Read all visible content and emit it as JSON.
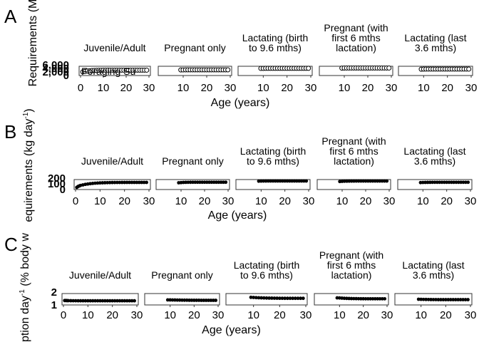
{
  "chart_data": [
    {
      "type": "scatter",
      "panel_label": "A",
      "ylabel": "Requirements (M",
      "xlabel": "Age (years)",
      "x_ticks": [
        "0",
        "10",
        "20",
        "30"
      ],
      "y_ticks": [
        "0",
        "2,000",
        "4,000",
        "6,000"
      ],
      "xlim": [
        0,
        30
      ],
      "ylim": [
        0,
        6000
      ],
      "legend_text": "Foraging Su",
      "facets": [
        {
          "title": "Juvenile/Adult",
          "x": [
            1,
            2,
            3,
            4,
            5,
            6,
            7,
            8,
            9,
            10,
            11,
            12,
            13,
            14,
            15,
            16,
            17,
            18,
            19,
            20,
            21,
            22,
            23,
            24,
            25,
            26,
            27,
            28,
            29
          ],
          "y": [
            2100,
            2500,
            2900,
            3100,
            3300,
            3400,
            3500,
            3550,
            3600,
            3650,
            3700,
            3700,
            3700,
            3700,
            3700,
            3700,
            3700,
            3700,
            3700,
            3700,
            3700,
            3700,
            3700,
            3700,
            3700,
            3700,
            3700,
            3700,
            3700
          ]
        },
        {
          "title": "Pregnant only",
          "x": [
            9,
            10,
            11,
            12,
            13,
            14,
            15,
            16,
            17,
            18,
            19,
            20,
            21,
            22,
            23,
            24,
            25,
            26,
            27,
            28,
            29
          ],
          "y": [
            3900,
            3950,
            4000,
            4000,
            4000,
            4000,
            4000,
            4000,
            4000,
            4000,
            4000,
            4000,
            4000,
            4000,
            4000,
            4000,
            4000,
            4000,
            4000,
            4000,
            4000
          ]
        },
        {
          "title": "Lactating (birth to 9.6 mths)",
          "x": [
            9,
            10,
            11,
            12,
            13,
            14,
            15,
            16,
            17,
            18,
            19,
            20,
            21,
            22,
            23,
            24,
            25,
            26,
            27,
            28,
            29
          ],
          "y": [
            5300,
            5350,
            5400,
            5400,
            5400,
            5400,
            5400,
            5400,
            5400,
            5400,
            5400,
            5400,
            5400,
            5400,
            5400,
            5400,
            5400,
            5400,
            5400,
            5400,
            5400
          ]
        },
        {
          "title": "Pregnant (with first 6 mths lactation)",
          "x": [
            9,
            10,
            11,
            12,
            13,
            14,
            15,
            16,
            17,
            18,
            19,
            20,
            21,
            22,
            23,
            24,
            25,
            26,
            27,
            28,
            29
          ],
          "y": [
            5600,
            5650,
            5700,
            5700,
            5700,
            5700,
            5700,
            5700,
            5700,
            5700,
            5700,
            5700,
            5700,
            5700,
            5700,
            5700,
            5700,
            5700,
            5700,
            5700,
            5700
          ]
        },
        {
          "title": "Lactating (last 3.6 mths)",
          "x": [
            9,
            10,
            11,
            12,
            13,
            14,
            15,
            16,
            17,
            18,
            19,
            20,
            21,
            22,
            23,
            24,
            25,
            26,
            27,
            28,
            29
          ],
          "y": [
            4600,
            4650,
            4700,
            4700,
            4700,
            4700,
            4700,
            4700,
            4700,
            4700,
            4700,
            4700,
            4700,
            4700,
            4700,
            4700,
            4700,
            4700,
            4700,
            4700,
            4700
          ]
        }
      ]
    },
    {
      "type": "scatter",
      "panel_label": "B",
      "ylabel": "equirements (kg day",
      "ylabel_superscript": "-1",
      "ylabel_suffix": ")",
      "xlabel": "Age (years)",
      "x_ticks": [
        "0",
        "10",
        "20",
        "30"
      ],
      "y_ticks": [
        "0",
        "100",
        "200"
      ],
      "xlim": [
        0,
        30
      ],
      "ylim": [
        0,
        200
      ],
      "facets": [
        {
          "title": "Juvenile/Adult",
          "x": [
            0.5,
            1,
            1.5,
            2,
            3,
            4,
            5,
            6,
            7,
            8,
            9,
            10,
            11,
            12,
            13,
            14,
            15,
            16,
            17,
            18,
            19,
            20,
            21,
            22,
            23,
            24,
            25,
            26,
            27,
            28,
            29
          ],
          "y": [
            20,
            45,
            60,
            75,
            90,
            105,
            115,
            125,
            132,
            138,
            142,
            146,
            149,
            151,
            153,
            155,
            156,
            157,
            158,
            158,
            159,
            159,
            160,
            160,
            160,
            160,
            160,
            160,
            160,
            160,
            160
          ]
        },
        {
          "title": "Pregnant only",
          "x": [
            9,
            10,
            11,
            12,
            13,
            14,
            15,
            16,
            17,
            18,
            19,
            20,
            21,
            22,
            23,
            24,
            25,
            26,
            27,
            28,
            29
          ],
          "y": [
            150,
            155,
            160,
            162,
            163,
            164,
            165,
            165,
            165,
            165,
            165,
            165,
            165,
            165,
            165,
            165,
            165,
            165,
            165,
            165,
            165
          ]
        },
        {
          "title": "Lactating (birth to 9.6 mths)",
          "x": [
            9,
            10,
            11,
            12,
            13,
            14,
            15,
            16,
            17,
            18,
            19,
            20,
            21,
            22,
            23,
            24,
            25,
            26,
            27,
            28,
            29
          ],
          "y": [
            195,
            197,
            198,
            199,
            200,
            200,
            200,
            200,
            200,
            200,
            200,
            200,
            200,
            200,
            200,
            200,
            200,
            200,
            200,
            200,
            200
          ]
        },
        {
          "title": "Pregnant (with first 6 mths lactation)",
          "x": [
            9,
            10,
            11,
            12,
            13,
            14,
            15,
            16,
            17,
            18,
            19,
            20,
            21,
            22,
            23,
            24,
            25,
            26,
            27,
            28,
            29
          ],
          "y": [
            185,
            190,
            193,
            195,
            196,
            197,
            197,
            198,
            198,
            198,
            198,
            198,
            198,
            198,
            198,
            198,
            198,
            198,
            198,
            198,
            198
          ]
        },
        {
          "title": "Lactating (last 3.6 mths)",
          "x": [
            9,
            10,
            11,
            12,
            13,
            14,
            15,
            16,
            17,
            18,
            19,
            20,
            21,
            22,
            23,
            24,
            25,
            26,
            27,
            28,
            29
          ],
          "y": [
            155,
            158,
            160,
            161,
            162,
            163,
            163,
            163,
            163,
            163,
            163,
            163,
            163,
            163,
            163,
            163,
            163,
            163,
            163,
            163,
            163
          ]
        }
      ]
    },
    {
      "type": "scatter",
      "panel_label": "C",
      "ylabel": "uption day",
      "ylabel_superscript": "-1",
      "ylabel_suffix": " (% body w",
      "xlabel": "Age (years)",
      "x_ticks": [
        "0",
        "10",
        "20",
        "30"
      ],
      "y_ticks": [
        "1",
        "2"
      ],
      "xlim": [
        0,
        30
      ],
      "ylim": [
        0.3,
        2.3
      ],
      "facets": [
        {
          "title": "Juvenile/Adult",
          "x": [
            0.5,
            1,
            1.5,
            2,
            3,
            4,
            5,
            6,
            7,
            8,
            9,
            10,
            11,
            12,
            13,
            14,
            15,
            16,
            17,
            18,
            19,
            20,
            21,
            22,
            23,
            24,
            25,
            26,
            27,
            28,
            29
          ],
          "y": [
            1.0,
            1.0,
            0.98,
            0.97,
            0.96,
            0.95,
            0.95,
            0.94,
            0.94,
            0.94,
            0.94,
            0.94,
            0.94,
            0.94,
            0.94,
            0.94,
            0.94,
            0.94,
            0.94,
            0.94,
            0.94,
            0.94,
            0.94,
            0.94,
            0.94,
            0.94,
            0.94,
            0.94,
            0.94,
            0.94,
            0.94
          ]
        },
        {
          "title": "Pregnant only",
          "x": [
            9,
            10,
            11,
            12,
            13,
            14,
            15,
            16,
            17,
            18,
            19,
            20,
            21,
            22,
            23,
            24,
            25,
            26,
            27,
            28,
            29
          ],
          "y": [
            1.15,
            1.14,
            1.13,
            1.12,
            1.11,
            1.1,
            1.09,
            1.08,
            1.08,
            1.07,
            1.07,
            1.06,
            1.06,
            1.06,
            1.05,
            1.05,
            1.05,
            1.05,
            1.05,
            1.05,
            1.05
          ]
        },
        {
          "title": "Lactating (birth to 9.6 mths)",
          "x": [
            9,
            10,
            11,
            12,
            13,
            14,
            15,
            16,
            17,
            18,
            19,
            20,
            21,
            22,
            23,
            24,
            25,
            26,
            27,
            28,
            29
          ],
          "y": [
            1.75,
            1.72,
            1.68,
            1.65,
            1.62,
            1.6,
            1.58,
            1.57,
            1.56,
            1.55,
            1.54,
            1.53,
            1.53,
            1.52,
            1.52,
            1.52,
            1.52,
            1.52,
            1.52,
            1.52,
            1.52
          ]
        },
        {
          "title": "Pregnant (with first 6 mths lactation)",
          "x": [
            9,
            10,
            11,
            12,
            13,
            14,
            15,
            16,
            17,
            18,
            19,
            20,
            21,
            22,
            23,
            24,
            25,
            26,
            27,
            28,
            29
          ],
          "y": [
            1.62,
            1.6,
            1.56,
            1.52,
            1.5,
            1.48,
            1.46,
            1.45,
            1.44,
            1.43,
            1.42,
            1.42,
            1.41,
            1.41,
            1.41,
            1.41,
            1.41,
            1.41,
            1.41,
            1.41,
            1.41
          ]
        },
        {
          "title": "Lactating (last 3.6 mths)",
          "x": [
            9,
            10,
            11,
            12,
            13,
            14,
            15,
            16,
            17,
            18,
            19,
            20,
            21,
            22,
            23,
            24,
            25,
            26,
            27,
            28,
            29
          ],
          "y": [
            1.3,
            1.28,
            1.26,
            1.25,
            1.24,
            1.23,
            1.22,
            1.22,
            1.21,
            1.21,
            1.21,
            1.21,
            1.21,
            1.21,
            1.21,
            1.21,
            1.21,
            1.21,
            1.21,
            1.21,
            1.21
          ]
        }
      ]
    }
  ]
}
